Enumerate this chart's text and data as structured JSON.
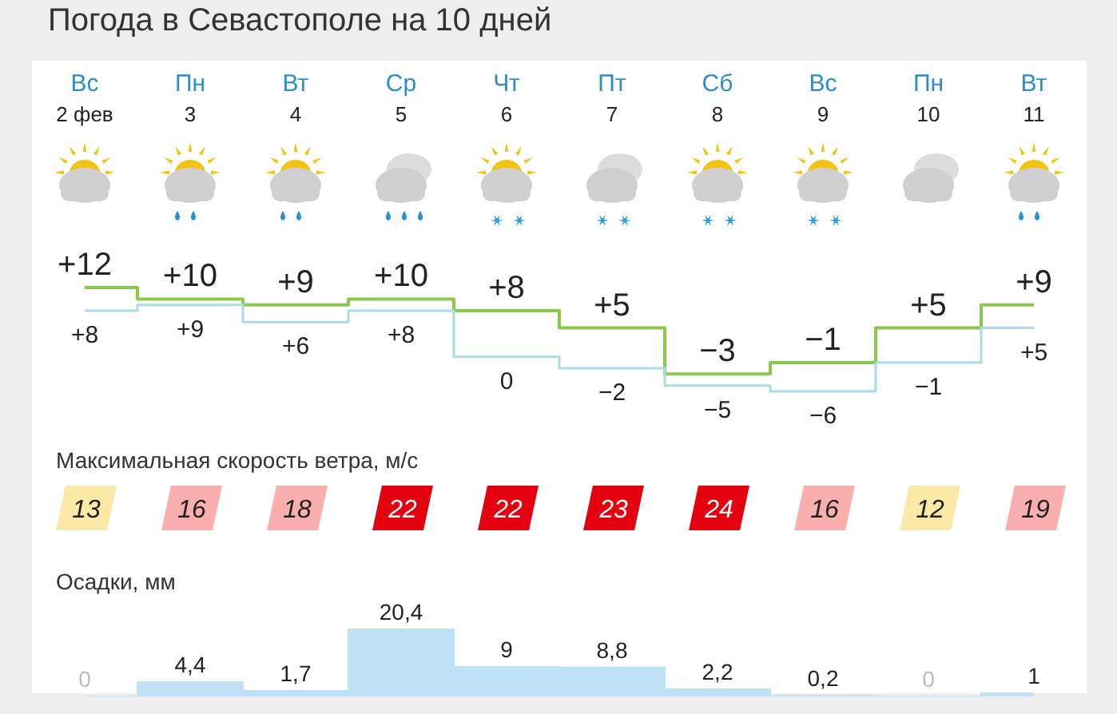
{
  "chart_data": [
    {
      "type": "step",
      "title": "Погода в Севастополе на 10 дней",
      "categories": [
        "Вс 2 фев",
        "Пн 3",
        "Вт 4",
        "Ср 5",
        "Чт 6",
        "Пт 7",
        "Сб 8",
        "Вс 9",
        "Пн 10",
        "Вт 11"
      ],
      "series": [
        {
          "color": "#8cc84b",
          "values": [
            12,
            10,
            9,
            10,
            8,
            5,
            -3,
            -1,
            5,
            9
          ],
          "value_labels": [
            "+12",
            "+10",
            "+9",
            "+10",
            "+8",
            "+5",
            "−3",
            "−1",
            "+5",
            "+9"
          ]
        },
        {
          "color": "#a9dce8",
          "values": [
            8,
            9,
            6,
            8,
            0,
            -2,
            -5,
            -6,
            -1,
            5
          ],
          "value_labels": [
            "+8",
            "+9",
            "+6",
            "+8",
            "0",
            "−2",
            "−5",
            "−6",
            "−1",
            "+5"
          ]
        }
      ]
    },
    {
      "type": "other",
      "title": "Максимальная скорость ветра, м/с",
      "values": [
        13,
        16,
        18,
        22,
        22,
        23,
        24,
        16,
        12,
        19
      ],
      "data_labels": true
    },
    {
      "type": "area",
      "title": "Осадки, мм",
      "categories": [
        null,
        null,
        null,
        null,
        null,
        null,
        null,
        null,
        null,
        null
      ],
      "color": "#bfe2f7",
      "values": [
        0,
        4.4,
        1.7,
        20.4,
        9,
        8.8,
        2.2,
        0.2,
        0,
        1
      ],
      "value_labels": [
        "0",
        "4,4",
        "1,7",
        "20,4",
        "9",
        "8,8",
        "2,2",
        "0,2",
        "0",
        "1"
      ]
    }
  ]
}
